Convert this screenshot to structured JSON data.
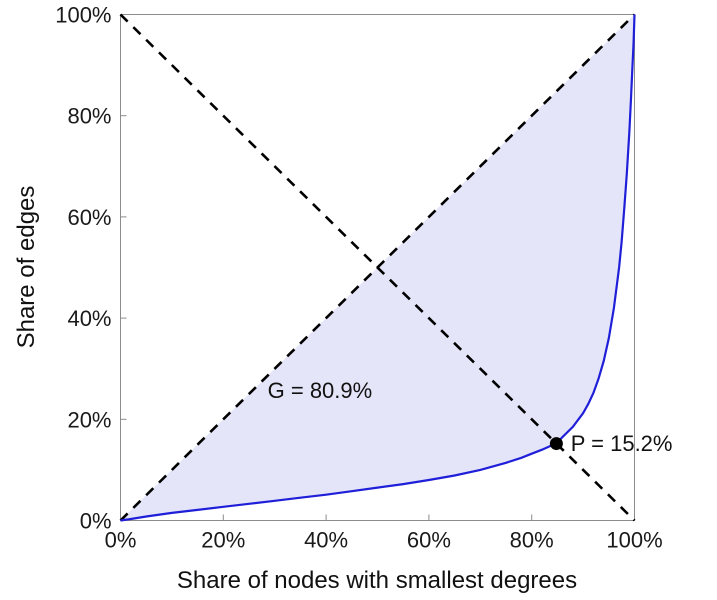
{
  "chart_data": {
    "type": "line",
    "xlabel": "Share of nodes with smallest degrees",
    "ylabel": "Share of edges",
    "xlim": [
      0,
      100
    ],
    "ylim": [
      0,
      100
    ],
    "grid": false,
    "legend": "none",
    "x_ticks": {
      "values": [
        0,
        20,
        40,
        60,
        80,
        100
      ],
      "labels": [
        "0%",
        "20%",
        "40%",
        "60%",
        "80%",
        "100%"
      ]
    },
    "y_ticks": {
      "values": [
        0,
        20,
        40,
        60,
        80,
        100
      ],
      "labels": [
        "0%",
        "20%",
        "40%",
        "60%",
        "80%",
        "100%"
      ]
    },
    "axis": {
      "color": "#8c8c8c",
      "tick_label_color": "#1a1a1a"
    },
    "fill": {
      "color": "#e5e5f9"
    },
    "series": [
      {
        "name": "equality-line",
        "color": "#000000",
        "width": 2.6,
        "dash": "10 8",
        "x": [
          0,
          100
        ],
        "y": [
          0,
          100
        ]
      },
      {
        "name": "anti-diagonal",
        "color": "#000000",
        "width": 2.6,
        "dash": "10 8",
        "x": [
          0,
          100
        ],
        "y": [
          100,
          0
        ]
      },
      {
        "name": "lorenz-curve",
        "color": "#1f1fd9",
        "width": 2.2,
        "x": [
          0,
          2,
          5,
          10,
          15,
          20,
          25,
          30,
          35,
          40,
          45,
          50,
          55,
          60,
          65,
          70,
          75,
          78,
          80,
          82,
          84,
          84.8,
          86,
          88,
          90,
          91,
          92,
          93,
          94,
          95,
          96,
          97,
          97.5,
          98,
          98.5,
          99,
          99.3,
          99.6,
          99.8,
          100
        ],
        "y": [
          0,
          0.3,
          0.8,
          1.5,
          2.1,
          2.7,
          3.3,
          3.9,
          4.5,
          5.1,
          5.8,
          6.5,
          7.2,
          8.0,
          8.9,
          10.0,
          11.4,
          12.4,
          13.2,
          14.0,
          14.9,
          15.2,
          16.5,
          18.5,
          21.2,
          23.0,
          25.2,
          28.0,
          31.5,
          36.0,
          42.0,
          50.0,
          55.0,
          61.5,
          68.5,
          77.0,
          83.0,
          89.5,
          94.0,
          100
        ]
      }
    ],
    "marker": {
      "x": 84.8,
      "y": 15.2,
      "color": "#000000"
    },
    "annotations": [
      {
        "id": "gini",
        "text": "G = 80.9%",
        "x": 38.8,
        "y": 25.5
      },
      {
        "id": "p-point",
        "text": "P = 15.2%",
        "x": 87.6,
        "y": 15.2
      }
    ],
    "gini_percent": 80.9,
    "p_percent": 15.2
  }
}
